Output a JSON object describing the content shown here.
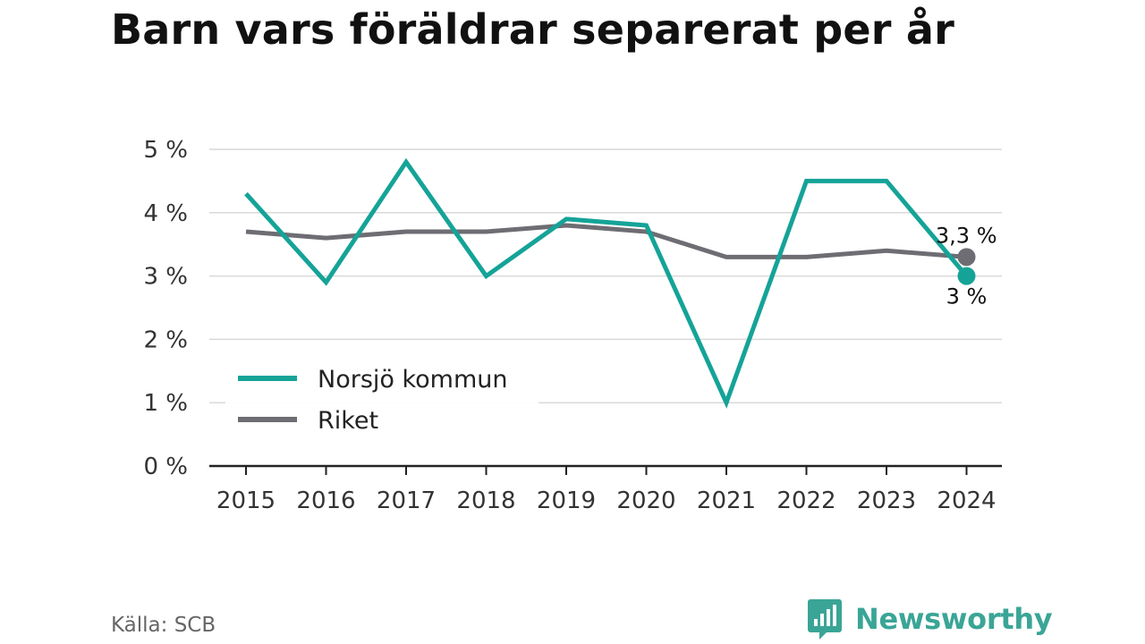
{
  "title": "Barn vars föräldrar separerat per år",
  "source": "Källa: SCB",
  "brand": {
    "name": "Newsworthy",
    "color": "#3aa596"
  },
  "chart_data": {
    "type": "line",
    "x": [
      "2015",
      "2016",
      "2017",
      "2018",
      "2019",
      "2020",
      "2021",
      "2022",
      "2023",
      "2024"
    ],
    "y_ticks": [
      "0 %",
      "1 %",
      "2 %",
      "3 %",
      "4 %",
      "5 %"
    ],
    "ylim": [
      0,
      5
    ],
    "grid": true,
    "legend_position": "bottom-left",
    "series": [
      {
        "name": "Norsjö kommun",
        "color": "#15a398",
        "values": [
          4.3,
          2.9,
          4.8,
          3.0,
          3.9,
          3.8,
          1.0,
          4.5,
          4.5,
          3.0
        ],
        "end_label": "3 %"
      },
      {
        "name": "Riket",
        "color": "#6e6d73",
        "values": [
          3.7,
          3.6,
          3.7,
          3.7,
          3.8,
          3.7,
          3.3,
          3.3,
          3.4,
          3.3
        ],
        "end_label": "3,3 %"
      }
    ]
  }
}
